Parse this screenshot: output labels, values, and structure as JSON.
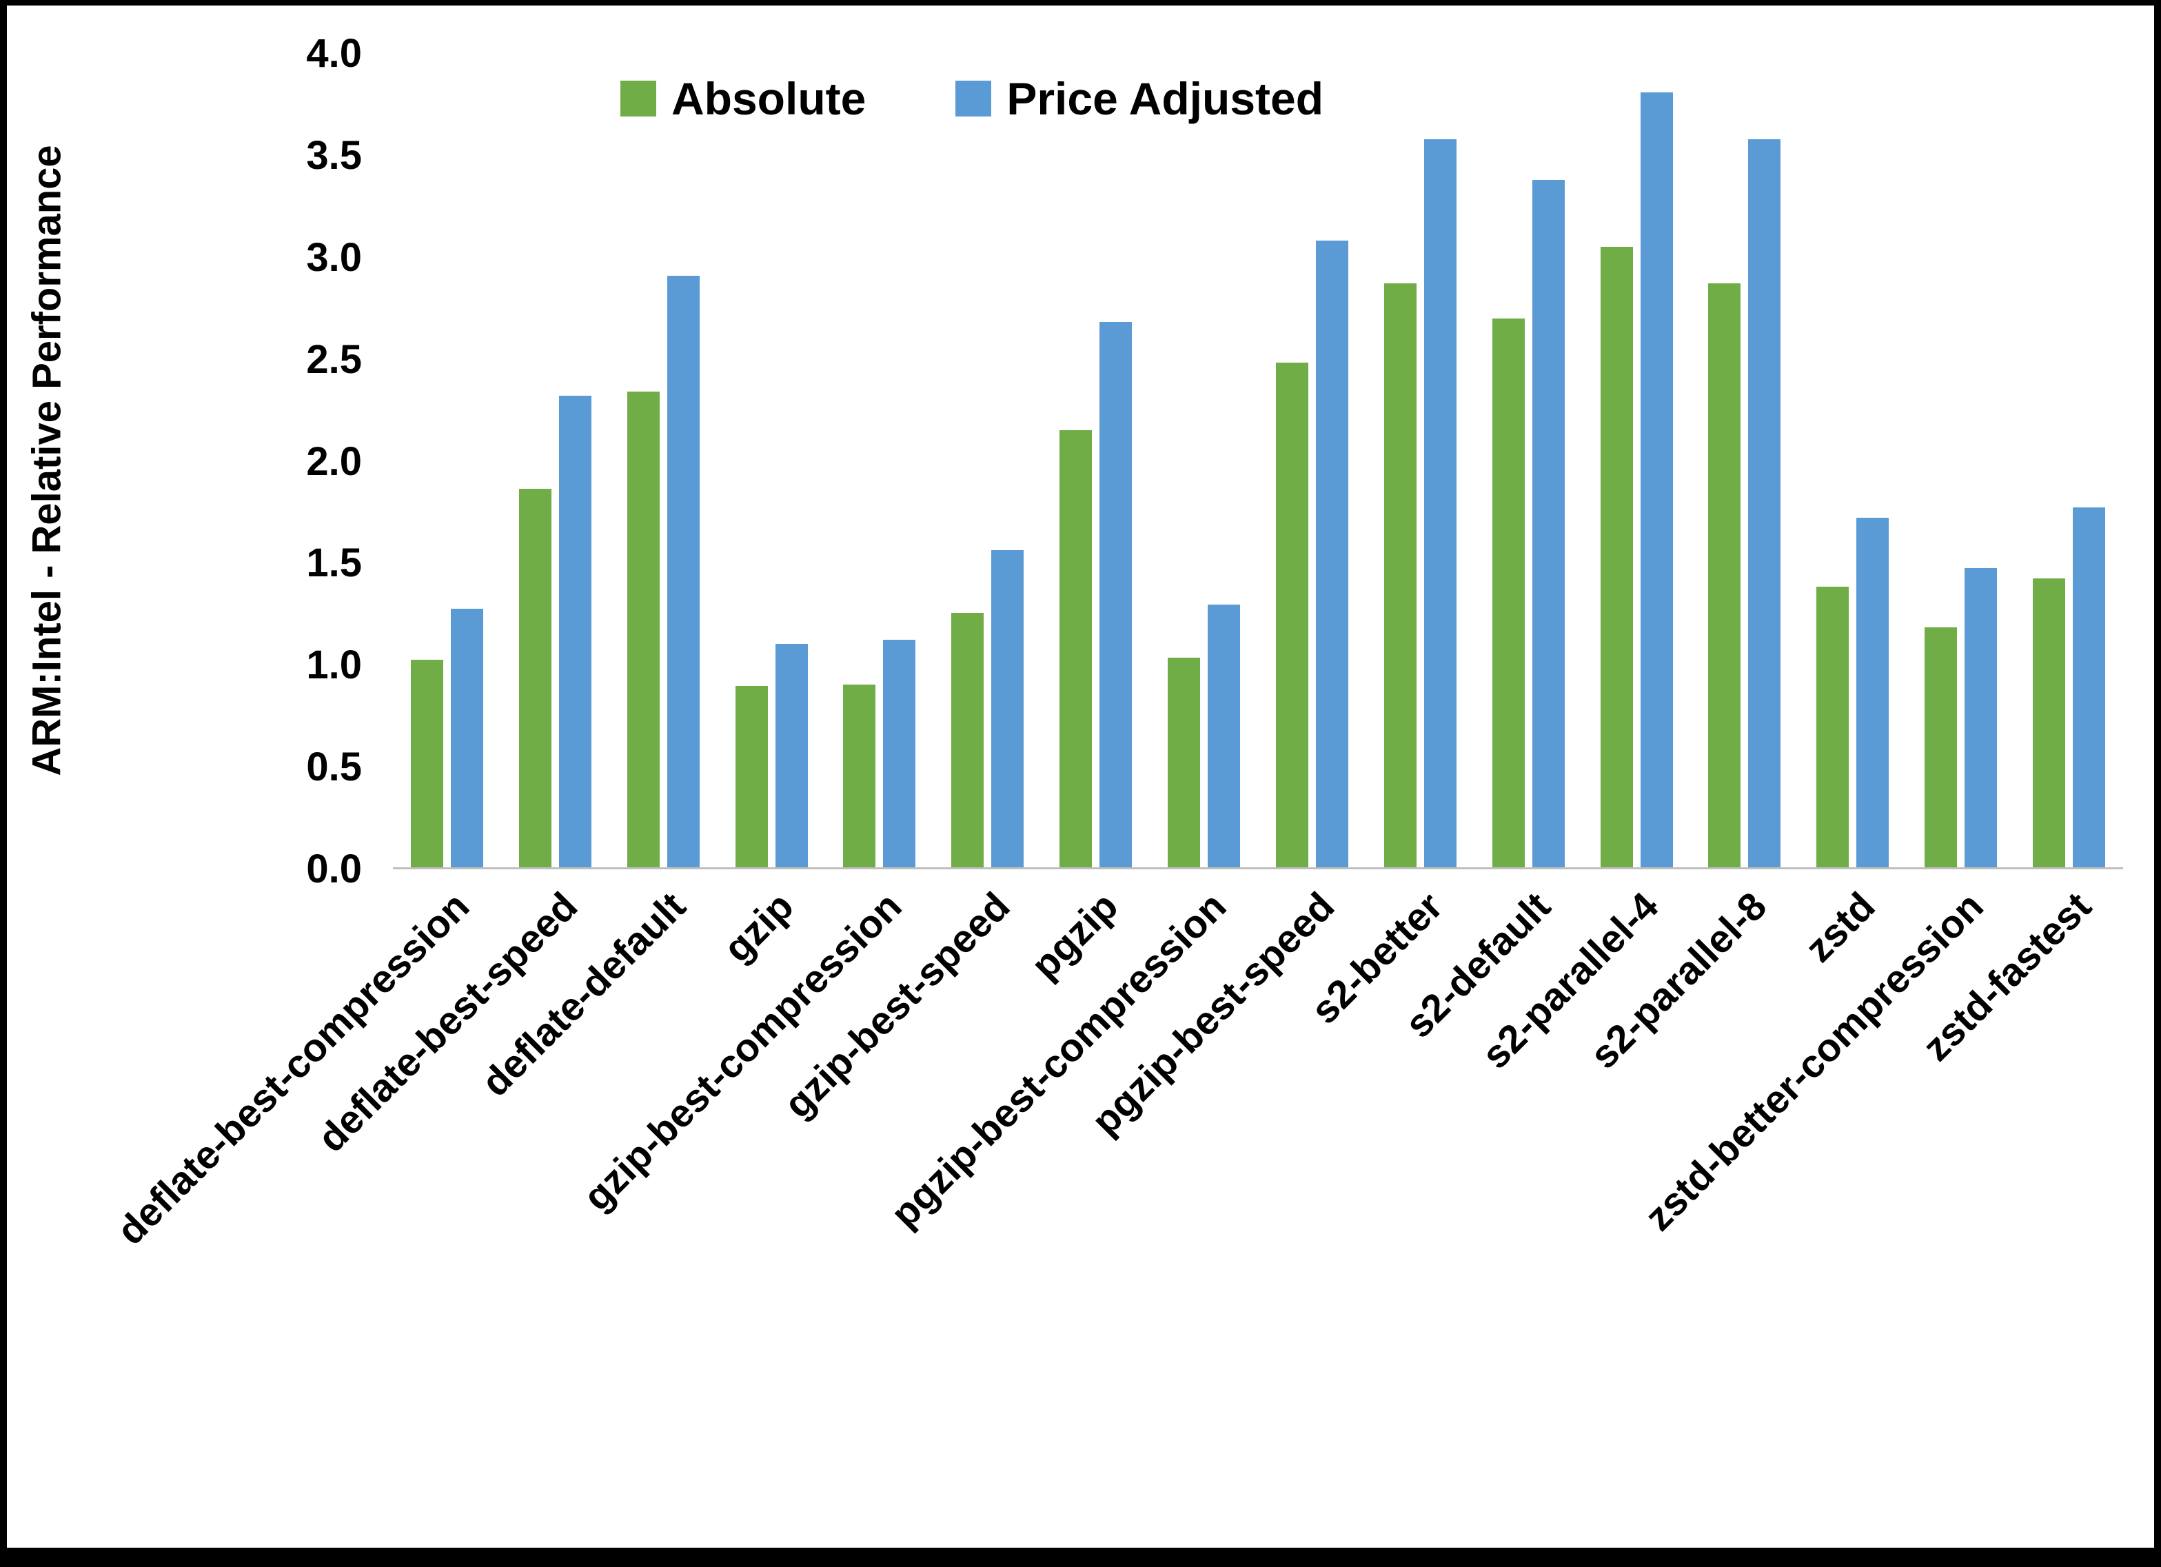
{
  "chart_data": {
    "type": "bar",
    "title": "",
    "xlabel": "",
    "ylabel": "ARM:Intel - Relative Performance",
    "ylim": [
      0.0,
      4.0
    ],
    "yticks": [
      0.0,
      0.5,
      1.0,
      1.5,
      2.0,
      2.5,
      3.0,
      3.5,
      4.0
    ],
    "ytick_decimals": 1,
    "grid": false,
    "legend_position": "top-center",
    "categories": [
      "deflate-best-compression",
      "deflate-best-speed",
      "deflate-default",
      "gzip",
      "gzip-best-compression",
      "gzip-best-speed",
      "pgzip",
      "pgzip-best-compression",
      "pgzip-best-speed",
      "s2-better",
      "s2-default",
      "s2-parallel-4",
      "s2-parallel-8",
      "zstd",
      "zstd-better-compression",
      "zstd-fastest"
    ],
    "series": [
      {
        "name": "Absolute",
        "color": "#70AD47",
        "values": [
          1.02,
          1.86,
          2.34,
          0.89,
          0.9,
          1.25,
          2.15,
          1.03,
          2.48,
          2.87,
          2.7,
          3.05,
          2.87,
          1.38,
          1.18,
          1.42
        ]
      },
      {
        "name": "Price Adjusted",
        "color": "#5B9BD5",
        "values": [
          1.27,
          2.32,
          2.91,
          1.1,
          1.12,
          1.56,
          2.68,
          1.29,
          3.08,
          3.58,
          3.38,
          3.81,
          3.58,
          1.72,
          1.47,
          1.77
        ]
      }
    ]
  }
}
